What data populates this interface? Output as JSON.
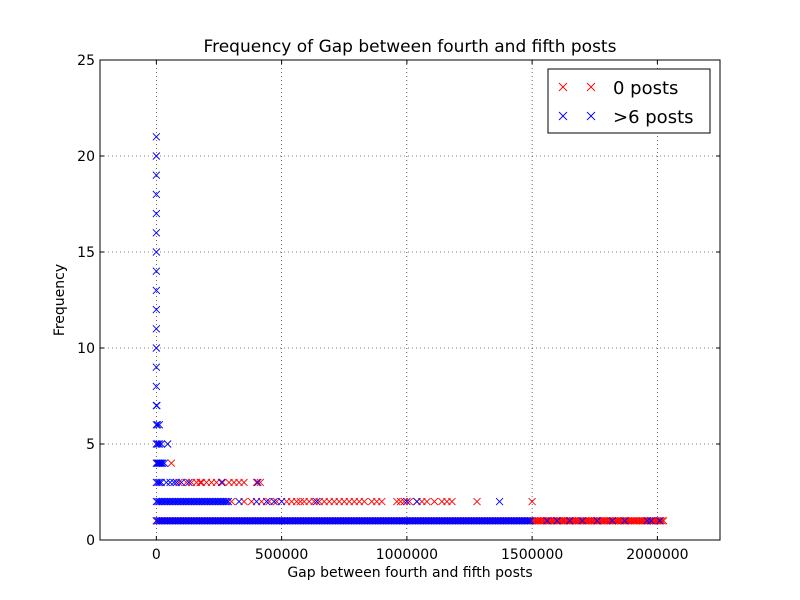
{
  "chart_data": {
    "type": "scatter",
    "title": "Frequency of Gap between fourth and fifth posts",
    "xlabel": "Gap between fourth and fifth posts",
    "ylabel": "Frequency",
    "xlim": [
      -225000,
      2250000
    ],
    "ylim": [
      0,
      25
    ],
    "xticks": [
      0,
      500000,
      1000000,
      1500000,
      2000000
    ],
    "xtick_labels": [
      "0",
      "500000",
      "1000000",
      "1500000",
      "2000000"
    ],
    "yticks": [
      0,
      5,
      10,
      15,
      20,
      25
    ],
    "ytick_labels": [
      "0",
      "5",
      "10",
      "15",
      "20",
      "25"
    ],
    "grid": true,
    "legend_position": "top-right",
    "series": [
      {
        "name": "0 posts",
        "color": "#ff0000",
        "marker": "x",
        "runs": [
          {
            "y": 1,
            "x_from": 0,
            "x_to": 2030000
          }
        ],
        "points": [
          {
            "x": 60000,
            "y": 4
          },
          {
            "x": 90000,
            "y": 3
          },
          {
            "x": 120000,
            "y": 3
          },
          {
            "x": 140000,
            "y": 3
          },
          {
            "x": 160000,
            "y": 3
          },
          {
            "x": 175000,
            "y": 3
          },
          {
            "x": 180000,
            "y": 3
          },
          {
            "x": 200000,
            "y": 3
          },
          {
            "x": 220000,
            "y": 3
          },
          {
            "x": 240000,
            "y": 3
          },
          {
            "x": 265000,
            "y": 3
          },
          {
            "x": 290000,
            "y": 3
          },
          {
            "x": 310000,
            "y": 3
          },
          {
            "x": 330000,
            "y": 3
          },
          {
            "x": 350000,
            "y": 3
          },
          {
            "x": 400000,
            "y": 3
          },
          {
            "x": 415000,
            "y": 3
          },
          {
            "x": 300000,
            "y": 2
          },
          {
            "x": 350000,
            "y": 2
          },
          {
            "x": 380000,
            "y": 2
          },
          {
            "x": 420000,
            "y": 2
          },
          {
            "x": 450000,
            "y": 2
          },
          {
            "x": 480000,
            "y": 2
          },
          {
            "x": 520000,
            "y": 2
          },
          {
            "x": 540000,
            "y": 2
          },
          {
            "x": 560000,
            "y": 2
          },
          {
            "x": 575000,
            "y": 2
          },
          {
            "x": 590000,
            "y": 2
          },
          {
            "x": 610000,
            "y": 2
          },
          {
            "x": 630000,
            "y": 2
          },
          {
            "x": 650000,
            "y": 2
          },
          {
            "x": 670000,
            "y": 2
          },
          {
            "x": 690000,
            "y": 2
          },
          {
            "x": 710000,
            "y": 2
          },
          {
            "x": 730000,
            "y": 2
          },
          {
            "x": 750000,
            "y": 2
          },
          {
            "x": 770000,
            "y": 2
          },
          {
            "x": 790000,
            "y": 2
          },
          {
            "x": 810000,
            "y": 2
          },
          {
            "x": 830000,
            "y": 2
          },
          {
            "x": 860000,
            "y": 2
          },
          {
            "x": 880000,
            "y": 2
          },
          {
            "x": 900000,
            "y": 2
          },
          {
            "x": 960000,
            "y": 2
          },
          {
            "x": 975000,
            "y": 2
          },
          {
            "x": 990000,
            "y": 2
          },
          {
            "x": 1010000,
            "y": 2
          },
          {
            "x": 1040000,
            "y": 2
          },
          {
            "x": 1060000,
            "y": 2
          },
          {
            "x": 1080000,
            "y": 2
          },
          {
            "x": 1110000,
            "y": 2
          },
          {
            "x": 1140000,
            "y": 2
          },
          {
            "x": 1160000,
            "y": 2
          },
          {
            "x": 1180000,
            "y": 2
          },
          {
            "x": 1280000,
            "y": 2
          },
          {
            "x": 1500000,
            "y": 2
          }
        ]
      },
      {
        "name": ">6 posts",
        "color": "#0000ff",
        "marker": "x",
        "runs": [
          {
            "y": 1,
            "x_from": 0,
            "x_to": 1500000
          },
          {
            "y": 2,
            "x_from": 0,
            "x_to": 290000
          },
          {
            "y": 3,
            "x_from": 0,
            "x_to": 25000
          }
        ],
        "points": [
          {
            "x": 0,
            "y": 21
          },
          {
            "x": 0,
            "y": 20
          },
          {
            "x": 0,
            "y": 19
          },
          {
            "x": 0,
            "y": 18
          },
          {
            "x": 0,
            "y": 17
          },
          {
            "x": 0,
            "y": 16
          },
          {
            "x": 0,
            "y": 15
          },
          {
            "x": 0,
            "y": 14
          },
          {
            "x": 0,
            "y": 13
          },
          {
            "x": 0,
            "y": 12
          },
          {
            "x": 0,
            "y": 11
          },
          {
            "x": 0,
            "y": 10
          },
          {
            "x": 0,
            "y": 9
          },
          {
            "x": 0,
            "y": 8
          },
          {
            "x": 0,
            "y": 7
          },
          {
            "x": 2000,
            "y": 7
          },
          {
            "x": 0,
            "y": 6
          },
          {
            "x": 5000,
            "y": 6
          },
          {
            "x": 12000,
            "y": 6
          },
          {
            "x": 0,
            "y": 5
          },
          {
            "x": 6000,
            "y": 5
          },
          {
            "x": 12000,
            "y": 5
          },
          {
            "x": 20000,
            "y": 5
          },
          {
            "x": 45000,
            "y": 5
          },
          {
            "x": 0,
            "y": 4
          },
          {
            "x": 4000,
            "y": 4
          },
          {
            "x": 8000,
            "y": 4
          },
          {
            "x": 12000,
            "y": 4
          },
          {
            "x": 16000,
            "y": 4
          },
          {
            "x": 20000,
            "y": 4
          },
          {
            "x": 25000,
            "y": 4
          },
          {
            "x": 32000,
            "y": 4
          },
          {
            "x": 40000,
            "y": 3
          },
          {
            "x": 55000,
            "y": 3
          },
          {
            "x": 70000,
            "y": 3
          },
          {
            "x": 80000,
            "y": 3
          },
          {
            "x": 100000,
            "y": 3
          },
          {
            "x": 130000,
            "y": 3
          },
          {
            "x": 260000,
            "y": 3
          },
          {
            "x": 405000,
            "y": 3
          },
          {
            "x": 330000,
            "y": 2
          },
          {
            "x": 400000,
            "y": 2
          },
          {
            "x": 440000,
            "y": 2
          },
          {
            "x": 470000,
            "y": 2
          },
          {
            "x": 500000,
            "y": 2
          },
          {
            "x": 640000,
            "y": 2
          },
          {
            "x": 1000000,
            "y": 2
          },
          {
            "x": 1040000,
            "y": 2
          },
          {
            "x": 1370000,
            "y": 2
          },
          {
            "x": 1560000,
            "y": 1
          },
          {
            "x": 1600000,
            "y": 1
          },
          {
            "x": 1650000,
            "y": 1
          },
          {
            "x": 1700000,
            "y": 1
          },
          {
            "x": 1760000,
            "y": 1
          },
          {
            "x": 1820000,
            "y": 1
          },
          {
            "x": 1870000,
            "y": 1
          },
          {
            "x": 1960000,
            "y": 1
          },
          {
            "x": 1975000,
            "y": 1
          },
          {
            "x": 2010000,
            "y": 1
          }
        ]
      }
    ]
  }
}
